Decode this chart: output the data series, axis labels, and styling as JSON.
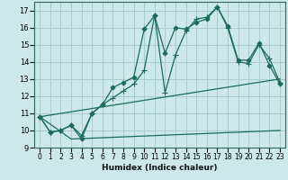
{
  "xlabel": "Humidex (Indice chaleur)",
  "bg_color": "#cce8e8",
  "grid_color": "#aacccc",
  "line_color": "#1a6b5a",
  "xlim": [
    -0.5,
    23.5
  ],
  "ylim": [
    9,
    17.5
  ],
  "xticks": [
    0,
    1,
    2,
    3,
    4,
    5,
    6,
    7,
    8,
    9,
    10,
    11,
    12,
    13,
    14,
    15,
    16,
    17,
    18,
    19,
    20,
    21,
    22,
    23
  ],
  "yticks": [
    9,
    10,
    11,
    12,
    13,
    14,
    15,
    16,
    17
  ],
  "lines": [
    {
      "x": [
        0,
        1,
        2,
        3,
        4,
        5,
        6,
        7,
        8,
        9,
        10,
        11,
        12,
        13,
        14,
        15,
        16,
        17,
        18,
        19,
        20,
        21,
        22,
        23
      ],
      "y": [
        10.8,
        9.9,
        10.0,
        10.3,
        9.5,
        11.0,
        11.5,
        12.5,
        12.8,
        13.1,
        15.9,
        16.7,
        14.5,
        16.0,
        15.9,
        16.3,
        16.5,
        17.2,
        16.1,
        14.1,
        14.1,
        15.1,
        13.8,
        12.7
      ],
      "marker": "D",
      "markersize": 2.5
    },
    {
      "x": [
        0,
        1,
        2,
        3,
        4,
        5,
        6,
        7,
        8,
        9,
        10,
        11,
        12,
        13,
        14,
        15,
        16,
        17,
        18,
        19,
        20,
        21,
        22,
        23
      ],
      "y": [
        10.8,
        9.9,
        10.0,
        10.3,
        9.7,
        11.0,
        11.5,
        11.9,
        12.3,
        12.7,
        13.5,
        16.7,
        12.2,
        14.4,
        15.8,
        16.5,
        16.6,
        17.2,
        16.0,
        14.0,
        13.9,
        15.0,
        14.2,
        12.8
      ],
      "marker": "+",
      "markersize": 4
    },
    {
      "x": [
        0,
        23
      ],
      "y": [
        10.8,
        13.0
      ],
      "marker": null,
      "markersize": 0
    },
    {
      "x": [
        0,
        3,
        23
      ],
      "y": [
        10.8,
        9.5,
        10.0
      ],
      "marker": null,
      "markersize": 0
    }
  ]
}
